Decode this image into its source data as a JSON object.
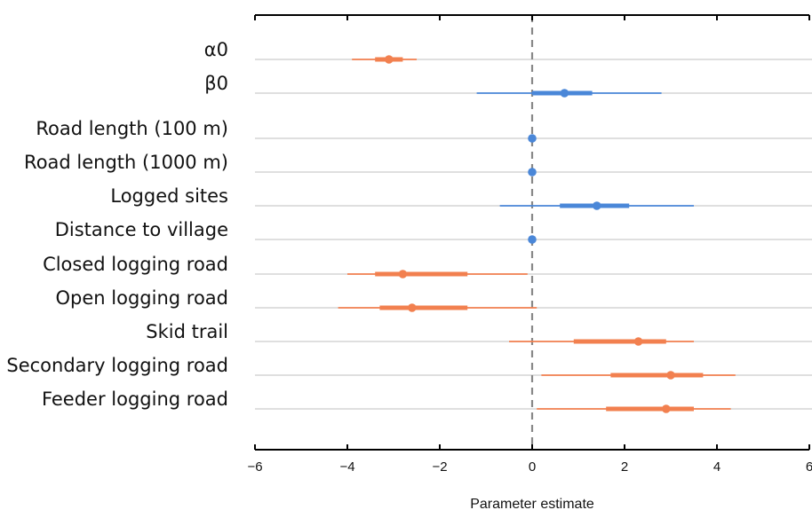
{
  "chart_data": {
    "type": "forest",
    "xlabel": "Parameter estimate",
    "xlim": [
      -6,
      6
    ],
    "x_ticks": [
      -6,
      -4,
      -2,
      0,
      2,
      4,
      6
    ],
    "x_tick_labels": [
      "−6",
      "−4",
      "−2",
      "0",
      "2",
      "4",
      "6"
    ],
    "reference_line": 0,
    "grid": "horizontal",
    "colors": {
      "orange": "#f2804f",
      "blue": "#4a87d8",
      "gridline": "#cccccc",
      "reference": "#888888"
    },
    "rows": [
      {
        "label": "α0",
        "estimate": -3.1,
        "inner": [
          -3.4,
          -2.8
        ],
        "outer": [
          -3.9,
          -2.5
        ],
        "color": "orange"
      },
      {
        "label": "β0",
        "estimate": 0.7,
        "inner": [
          0.0,
          1.3
        ],
        "outer": [
          -1.2,
          2.8
        ],
        "color": "blue"
      },
      {
        "label": "Road length (100 m)",
        "estimate": 0.0,
        "inner": [
          0.0,
          0.0
        ],
        "outer": [
          0.0,
          0.0
        ],
        "color": "blue"
      },
      {
        "label": "Road length (1000 m)",
        "estimate": 0.0,
        "inner": [
          0.0,
          0.0
        ],
        "outer": [
          0.0,
          0.0
        ],
        "color": "blue"
      },
      {
        "label": "Logged sites",
        "estimate": 1.4,
        "inner": [
          0.6,
          2.1
        ],
        "outer": [
          -0.7,
          3.5
        ],
        "color": "blue"
      },
      {
        "label": "Distance to village",
        "estimate": 0.0,
        "inner": [
          0.0,
          0.0
        ],
        "outer": [
          0.0,
          0.0
        ],
        "color": "blue"
      },
      {
        "label": "Closed logging road",
        "estimate": -2.8,
        "inner": [
          -3.4,
          -1.4
        ],
        "outer": [
          -4.0,
          -0.1
        ],
        "color": "orange"
      },
      {
        "label": "Open logging road",
        "estimate": -2.6,
        "inner": [
          -3.3,
          -1.4
        ],
        "outer": [
          -4.2,
          0.1
        ],
        "color": "orange"
      },
      {
        "label": "Skid trail",
        "estimate": 2.3,
        "inner": [
          0.9,
          2.9
        ],
        "outer": [
          -0.5,
          3.5
        ],
        "color": "orange"
      },
      {
        "label": "Secondary logging road",
        "estimate": 3.0,
        "inner": [
          1.7,
          3.7
        ],
        "outer": [
          0.2,
          4.4
        ],
        "color": "orange"
      },
      {
        "label": "Feeder logging road",
        "estimate": 2.9,
        "inner": [
          1.6,
          3.5
        ],
        "outer": [
          0.1,
          4.3
        ],
        "color": "orange"
      }
    ]
  }
}
